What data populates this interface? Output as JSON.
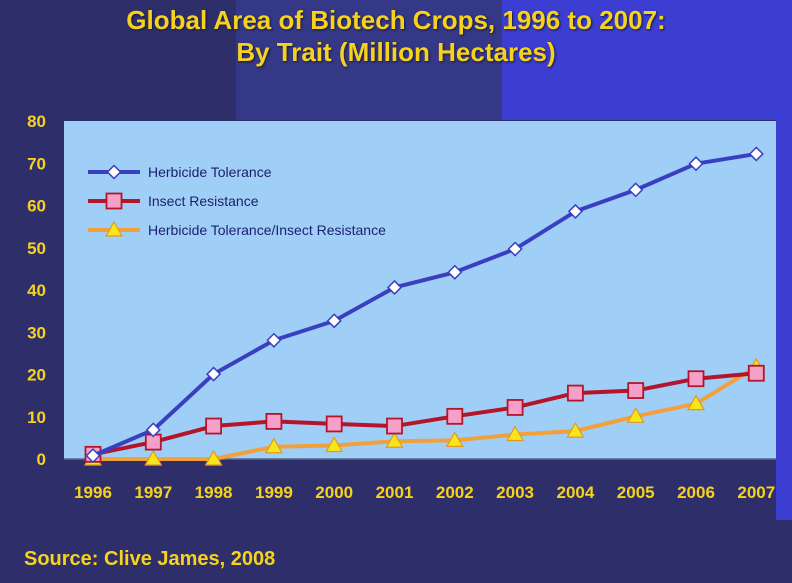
{
  "title_line1": "Global Area of Biotech Crops, 1996 to 2007:",
  "title_line2": "By Trait (Million Hectares)",
  "source": "Source: Clive James, 2008",
  "colors": {
    "background": "#2e2f6a",
    "plot_area": "#9fcff6",
    "title": "#f6d21e",
    "series_blue": "#3a3fc0",
    "series_red": "#b4152a",
    "series_orange": "#f2a13a"
  },
  "chart_data": {
    "type": "line",
    "title": "Global Area of Biotech Crops, 1996 to 2007: By Trait (Million Hectares)",
    "xlabel": "",
    "ylabel": "",
    "ylim": [
      0,
      80
    ],
    "yticks": [
      0,
      10,
      20,
      30,
      40,
      50,
      60,
      70,
      80
    ],
    "x": [
      "1996",
      "1997",
      "1998",
      "1999",
      "2000",
      "2001",
      "2002",
      "2003",
      "2004",
      "2005",
      "2006",
      "2007"
    ],
    "legend_position": "top-left",
    "series": [
      {
        "name": "Herbicide Tolerance",
        "marker": "diamond",
        "values": [
          0.8,
          6.9,
          20.1,
          28.1,
          32.7,
          40.6,
          44.2,
          49.7,
          58.6,
          63.7,
          69.9,
          72.2
        ]
      },
      {
        "name": "Insect Resistance",
        "marker": "square",
        "values": [
          1.1,
          4.0,
          7.8,
          8.9,
          8.3,
          7.8,
          10.1,
          12.2,
          15.6,
          16.2,
          19.0,
          20.3
        ]
      },
      {
        "name": "Herbicide Tolerance/Insect Resistance",
        "marker": "triangle",
        "values": [
          0.0,
          0.0,
          0.0,
          2.9,
          3.2,
          4.2,
          4.4,
          5.8,
          6.6,
          10.1,
          13.1,
          21.8
        ]
      }
    ]
  }
}
